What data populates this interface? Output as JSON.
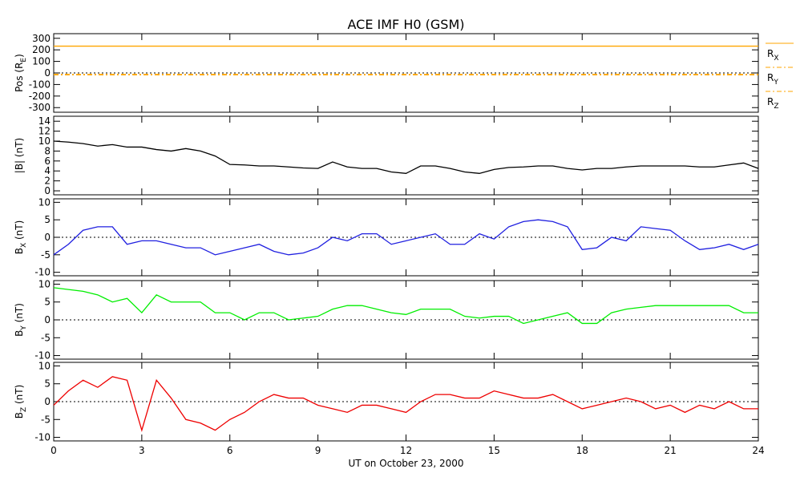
{
  "chart_data": [
    {
      "type": "line",
      "title": "ACE IMF H0 (GSM)",
      "ylabel": [
        "Pos (R",
        "E",
        ")"
      ],
      "x": [
        0,
        24
      ],
      "xlim": [
        0,
        24
      ],
      "xticks": [
        0,
        3,
        6,
        9,
        12,
        15,
        18,
        21,
        24
      ],
      "ylim": [
        -340,
        340
      ],
      "yticks": [
        300,
        200,
        100,
        0,
        -100,
        -200,
        -300
      ],
      "zero_line": true,
      "legend": "right",
      "series": [
        {
          "name": [
            "R",
            "X"
          ],
          "color": "#ffa500",
          "dash": false,
          "values": [
            232,
            232
          ]
        },
        {
          "name": [
            "R",
            "Y"
          ],
          "color": "#ffa500",
          "dash": true,
          "values": [
            -12,
            -12
          ]
        },
        {
          "name": [
            "R",
            "Z"
          ],
          "color": "#ffa500",
          "dash": true,
          "values": [
            -16,
            -16
          ]
        }
      ]
    },
    {
      "type": "line",
      "ylabel": [
        "|B| (nT)"
      ],
      "x": [
        0,
        0.5,
        1,
        1.5,
        2,
        2.5,
        3,
        3.5,
        4,
        4.5,
        5,
        5.5,
        6,
        6.5,
        7,
        7.5,
        8,
        8.5,
        9,
        9.5,
        10,
        10.5,
        11,
        11.5,
        12,
        12.5,
        13,
        13.5,
        14,
        14.5,
        15,
        15.5,
        16,
        16.5,
        17,
        17.5,
        18,
        18.5,
        19,
        19.5,
        20,
        20.5,
        21,
        21.5,
        22,
        22.5,
        23,
        23.5,
        24
      ],
      "xlim": [
        0,
        24
      ],
      "xticks": [
        0,
        3,
        6,
        9,
        12,
        15,
        18,
        21,
        24
      ],
      "ylim": [
        -0.8,
        15
      ],
      "yticks": [
        14,
        12,
        10,
        8,
        6,
        4,
        2,
        0
      ],
      "zero_line": false,
      "series": [
        {
          "color": "#000000",
          "values": [
            10,
            9.8,
            9.5,
            9,
            9.3,
            8.8,
            8.8,
            8.3,
            8,
            8.5,
            8,
            7,
            5.3,
            5.2,
            5,
            5,
            4.8,
            4.6,
            4.5,
            5.8,
            4.8,
            4.5,
            4.5,
            3.8,
            3.5,
            5,
            5,
            4.5,
            3.8,
            3.5,
            4.3,
            4.7,
            4.8,
            5,
            5,
            4.5,
            4.2,
            4.5,
            4.5,
            4.8,
            5,
            5,
            5,
            5,
            4.8,
            4.8,
            5.2,
            5.6,
            4.5
          ]
        }
      ]
    },
    {
      "type": "line",
      "ylabel": [
        "B",
        "X",
        " (nT)"
      ],
      "x": [
        0,
        0.5,
        1,
        1.5,
        2,
        2.5,
        3,
        3.5,
        4,
        4.5,
        5,
        5.5,
        6,
        6.5,
        7,
        7.5,
        8,
        8.5,
        9,
        9.5,
        10,
        10.5,
        11,
        11.5,
        12,
        12.5,
        13,
        13.5,
        14,
        14.5,
        15,
        15.5,
        16,
        16.5,
        17,
        17.5,
        18,
        18.5,
        19,
        19.5,
        20,
        20.5,
        21,
        21.5,
        22,
        22.5,
        23,
        23.5,
        24
      ],
      "xlim": [
        0,
        24
      ],
      "xticks": [
        0,
        3,
        6,
        9,
        12,
        15,
        18,
        21,
        24
      ],
      "ylim": [
        -11,
        11
      ],
      "yticks": [
        10,
        5,
        0,
        -5,
        -10
      ],
      "zero_line": true,
      "series": [
        {
          "color": "#2020e0",
          "values": [
            -5,
            -2,
            2,
            3,
            3,
            -2,
            -1,
            -1,
            -2,
            -3,
            -3,
            -5,
            -4,
            -3,
            -2,
            -4,
            -5,
            -4.5,
            -3,
            0,
            -1,
            1,
            1,
            -2,
            -1,
            0,
            1,
            -2,
            -2,
            1,
            -0.5,
            3,
            4.5,
            5,
            4.5,
            3,
            -3.5,
            -3,
            0,
            -1,
            3,
            2.5,
            2,
            -1,
            -3.5,
            -3,
            -2,
            -3.5,
            -2
          ]
        }
      ]
    },
    {
      "type": "line",
      "ylabel": [
        "B",
        "Y",
        " (nT)"
      ],
      "x": [
        0,
        0.5,
        1,
        1.5,
        2,
        2.5,
        3,
        3.5,
        4,
        4.5,
        5,
        5.5,
        6,
        6.5,
        7,
        7.5,
        8,
        8.5,
        9,
        9.5,
        10,
        10.5,
        11,
        11.5,
        12,
        12.5,
        13,
        13.5,
        14,
        14.5,
        15,
        15.5,
        16,
        16.5,
        17,
        17.5,
        18,
        18.5,
        19,
        19.5,
        20,
        20.5,
        21,
        21.5,
        22,
        22.5,
        23,
        23.5,
        24
      ],
      "xlim": [
        0,
        24
      ],
      "xticks": [
        0,
        3,
        6,
        9,
        12,
        15,
        18,
        21,
        24
      ],
      "ylim": [
        -11,
        11
      ],
      "yticks": [
        10,
        5,
        0,
        -5,
        -10
      ],
      "zero_line": true,
      "series": [
        {
          "color": "#00ee00",
          "values": [
            9,
            8.5,
            8,
            7,
            5,
            6,
            2,
            7,
            5,
            5,
            5,
            2,
            2,
            0,
            2,
            2,
            0,
            0.5,
            1,
            3,
            4,
            4,
            3,
            2,
            1.5,
            3,
            3,
            3,
            1,
            0.5,
            1,
            1,
            -1,
            0,
            1,
            2,
            -1,
            -1,
            2,
            3,
            3.5,
            4,
            4,
            4,
            4,
            4,
            4,
            2,
            2
          ]
        }
      ]
    },
    {
      "type": "line",
      "ylabel": [
        "B",
        "Z",
        " (nT)"
      ],
      "xlabel": "UT on October 23, 2000",
      "x": [
        0,
        0.5,
        1,
        1.5,
        2,
        2.5,
        3,
        3.5,
        4,
        4.5,
        5,
        5.5,
        6,
        6.5,
        7,
        7.5,
        8,
        8.5,
        9,
        9.5,
        10,
        10.5,
        11,
        11.5,
        12,
        12.5,
        13,
        13.5,
        14,
        14.5,
        15,
        15.5,
        16,
        16.5,
        17,
        17.5,
        18,
        18.5,
        19,
        19.5,
        20,
        20.5,
        21,
        21.5,
        22,
        22.5,
        23,
        23.5,
        24
      ],
      "xlim": [
        0,
        24
      ],
      "xticks": [
        0,
        3,
        6,
        9,
        12,
        15,
        18,
        21,
        24
      ],
      "ylim": [
        -11,
        11
      ],
      "yticks": [
        10,
        5,
        0,
        -5,
        -10
      ],
      "zero_line": true,
      "series": [
        {
          "color": "#ee0000",
          "values": [
            -1,
            3,
            6,
            4,
            7,
            6,
            -8,
            6,
            1,
            -5,
            -6,
            -8,
            -5,
            -3,
            0,
            2,
            1,
            1,
            -1,
            -2,
            -3,
            -1,
            -1,
            -2,
            -3,
            0,
            2,
            2,
            1,
            1,
            3,
            2,
            1,
            1,
            2,
            0,
            -2,
            -1,
            0,
            1,
            0,
            -2,
            -1,
            -3,
            -1,
            -2,
            0,
            -2,
            -2
          ]
        }
      ]
    }
  ]
}
